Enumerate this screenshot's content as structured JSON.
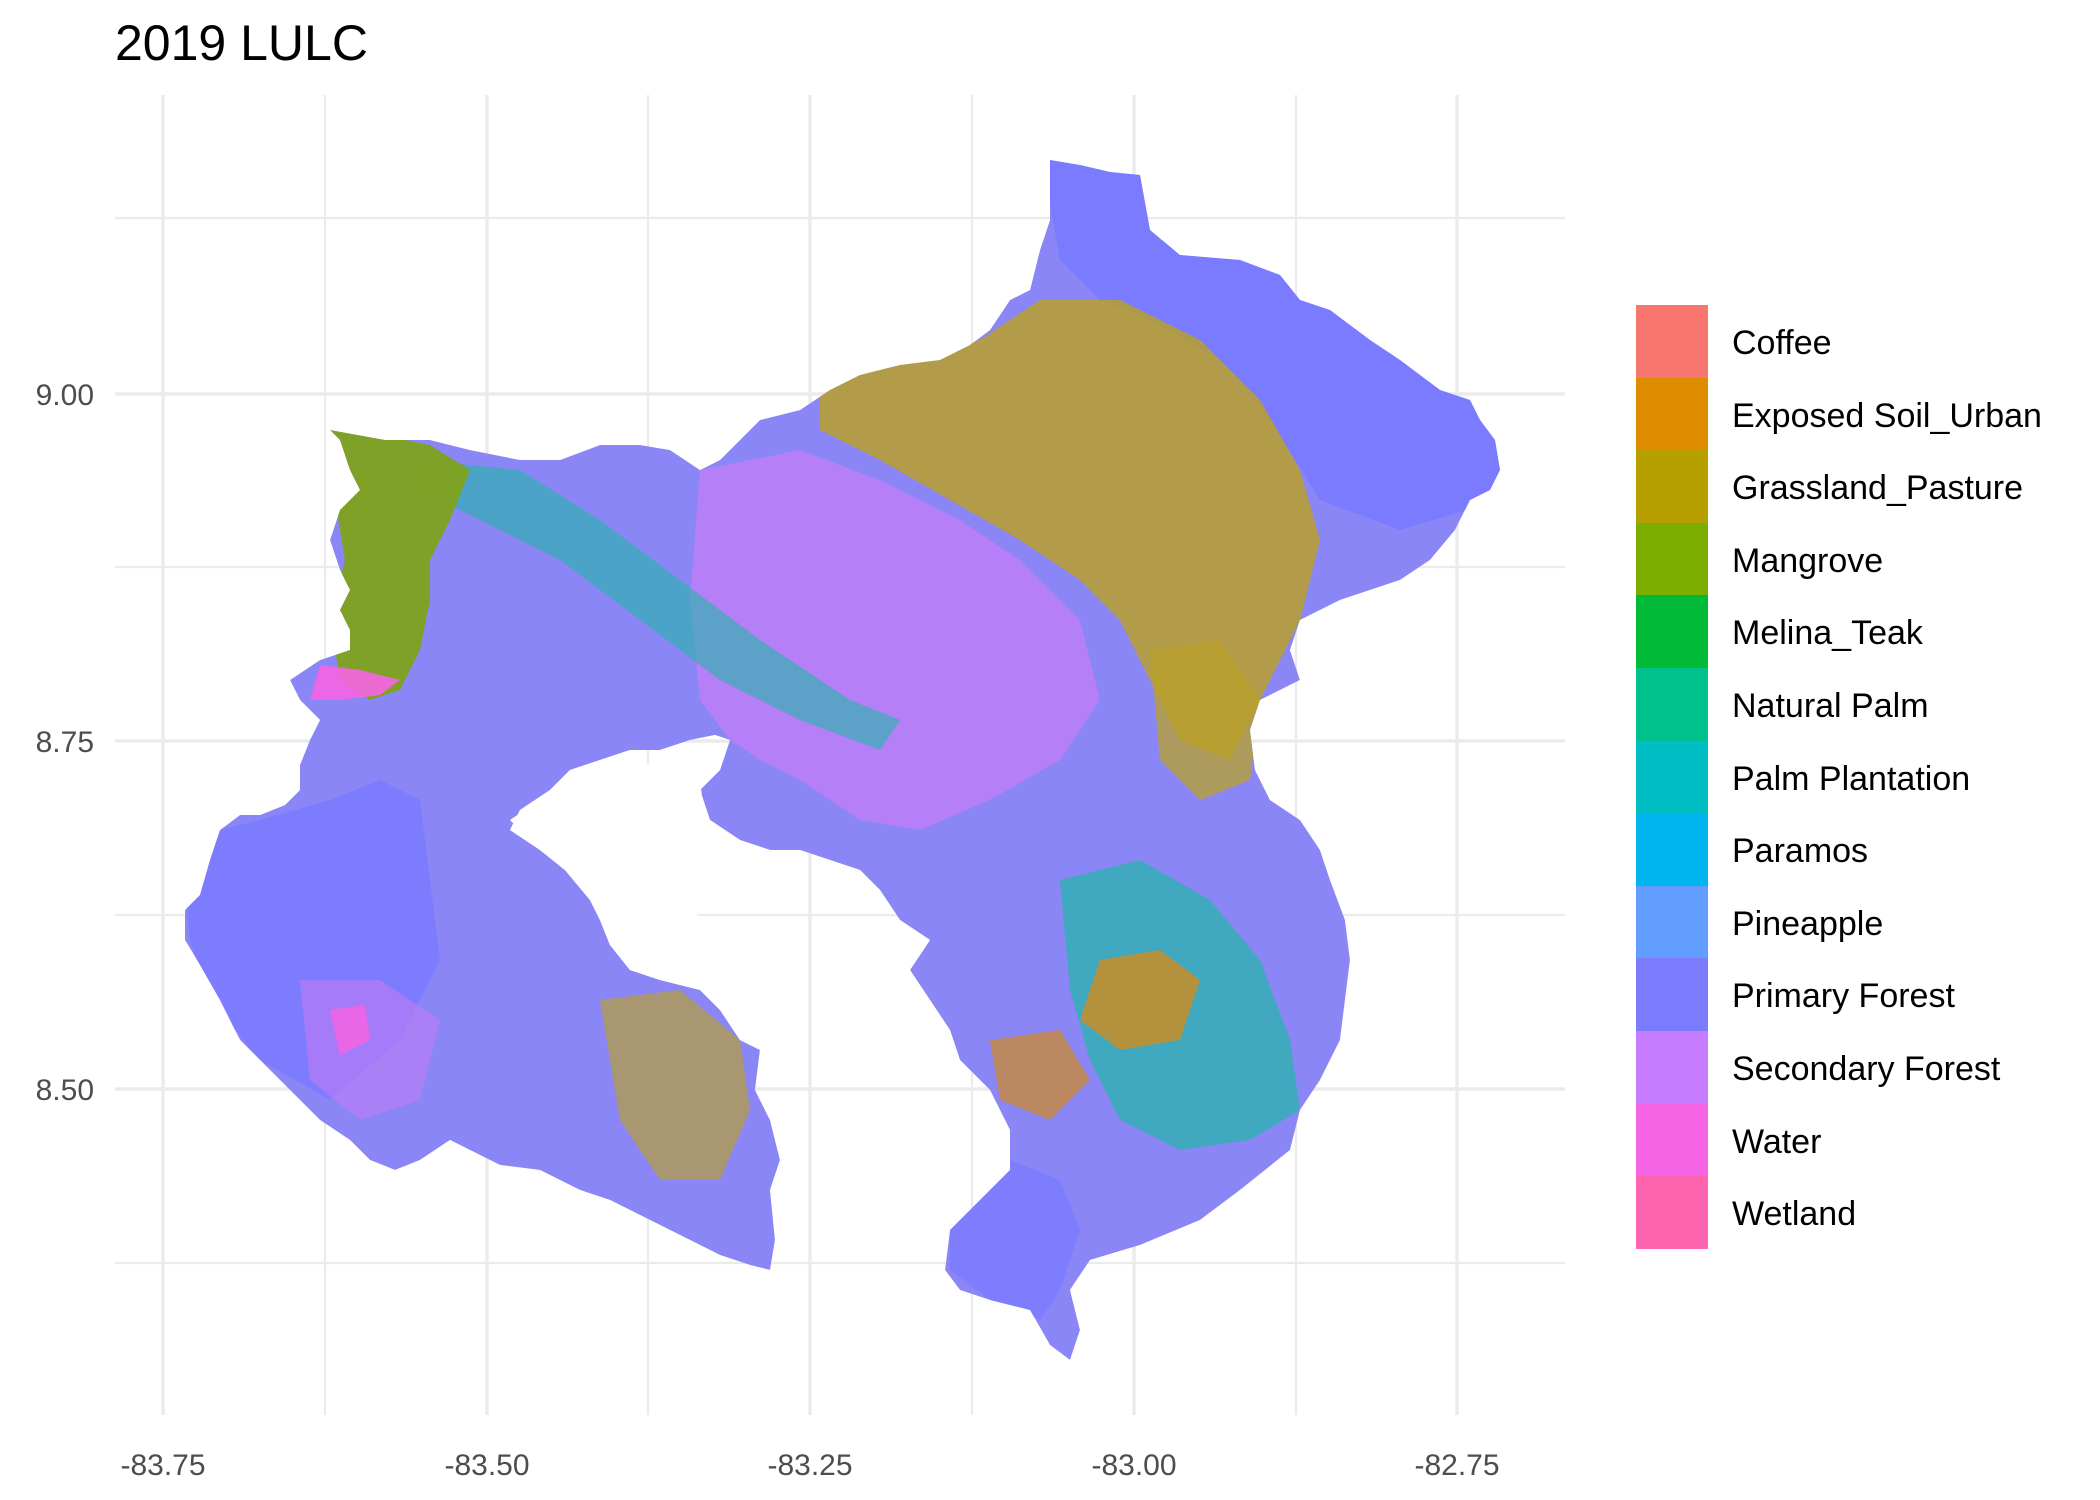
{
  "title": "2019 LULC",
  "x_ticks": [
    "-83.75",
    "-83.50",
    "-83.25",
    "-83.00",
    "-82.75"
  ],
  "y_ticks": [
    "9.00",
    "8.75",
    "8.50"
  ],
  "legend": [
    {
      "label": "Coffee",
      "color": "#F8766D"
    },
    {
      "label": "Exposed Soil_Urban",
      "color": "#DE8C00"
    },
    {
      "label": "Grassland_Pasture",
      "color": "#B79F00"
    },
    {
      "label": "Mangrove",
      "color": "#7CAE00"
    },
    {
      "label": "Melina_Teak",
      "color": "#00BA38"
    },
    {
      "label": "Natural Palm",
      "color": "#00C08B"
    },
    {
      "label": "Palm Plantation",
      "color": "#00BFC4"
    },
    {
      "label": "Paramos",
      "color": "#00B4F0"
    },
    {
      "label": "Pineapple",
      "color": "#619CFF"
    },
    {
      "label": "Primary Forest",
      "color": "#7B7BFF"
    },
    {
      "label": "Secondary Forest",
      "color": "#C77CFF"
    },
    {
      "label": "Water",
      "color": "#F564E3"
    },
    {
      "label": "Wetland",
      "color": "#FF64B0"
    }
  ]
}
